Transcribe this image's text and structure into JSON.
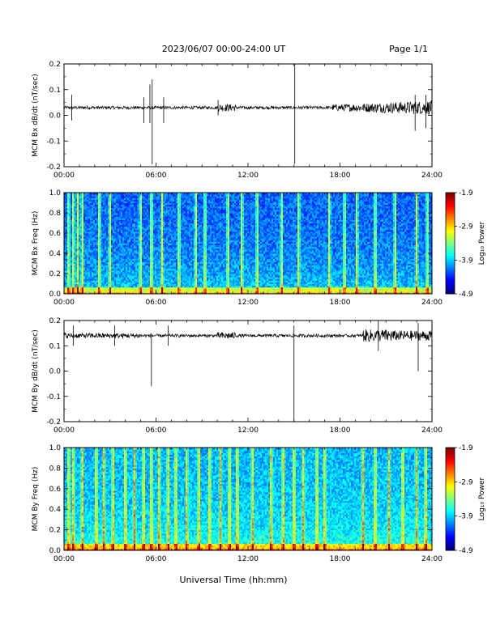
{
  "header": {
    "title": "2023/06/07  00:00-24:00 UT",
    "page": "Page 1/1"
  },
  "xlabel": "Universal Time (hh:mm)",
  "colorbar": {
    "label": "Log₁₀ Power"
  },
  "chart_data": [
    {
      "type": "line",
      "ylabel": "MCM Bx dB/dt (nT/sec)",
      "xlim": [
        0,
        24
      ],
      "ylim": [
        -0.2,
        0.2
      ],
      "x_ticks": [
        "00:00",
        "06:00",
        "12:00",
        "18:00",
        "24:00"
      ],
      "y_ticks": [
        "0.2",
        "0.1",
        "0.0",
        "-0.1",
        "-0.2"
      ],
      "baseline": 0.03,
      "spikes": [
        {
          "t": 0.5,
          "min": -0.02,
          "max": 0.08
        },
        {
          "t": 5.2,
          "min": -0.03,
          "max": 0.07
        },
        {
          "t": 5.6,
          "min": -0.03,
          "max": 0.12
        },
        {
          "t": 5.75,
          "min": -0.19,
          "max": 0.14
        },
        {
          "t": 6.5,
          "min": -0.03,
          "max": 0.07
        },
        {
          "t": 10.05,
          "min": 0.0,
          "max": 0.06
        },
        {
          "t": 15.05,
          "min": -0.19,
          "max": 0.2
        },
        {
          "t": 22.9,
          "min": -0.06,
          "max": 0.08
        },
        {
          "t": 23.6,
          "min": -0.05,
          "max": 0.08
        }
      ]
    },
    {
      "type": "heatmap",
      "ylabel": "MCM Bx Freq (Hz)",
      "xlim": [
        0,
        24
      ],
      "ylim": [
        0,
        1.0
      ],
      "x_ticks": [
        "00:00",
        "06:00",
        "12:00",
        "18:00",
        "24:00"
      ],
      "y_ticks": [
        "1.0",
        "0.8",
        "0.6",
        "0.4",
        "0.2",
        "0.0"
      ],
      "color_range": [
        -4.9,
        -1.9
      ],
      "colorbar_ticks": [
        "-1.9",
        "-2.9",
        "-3.9",
        "-4.9"
      ],
      "bright_bands": [
        0.3,
        0.6,
        0.9,
        1.2,
        2.3,
        3.0,
        5.0,
        5.7,
        6.4,
        7.5,
        8.6,
        9.2,
        10.7,
        11.6,
        12.6,
        14.2,
        15.3,
        17.3,
        18.3,
        19.1,
        20.3,
        21.6,
        23.0,
        23.7
      ]
    },
    {
      "type": "line",
      "ylabel": "MCM By dB/dt (nT/sec)",
      "xlim": [
        0,
        24
      ],
      "ylim": [
        -0.2,
        0.2
      ],
      "x_ticks": [
        "00:00",
        "06:00",
        "12:00",
        "18:00",
        "24:00"
      ],
      "y_ticks": [
        "0.2",
        "0.1",
        "0.0",
        "-0.1",
        "-0.2"
      ],
      "baseline": 0.14,
      "spikes": [
        {
          "t": 0.6,
          "min": 0.1,
          "max": 0.18
        },
        {
          "t": 3.3,
          "min": 0.1,
          "max": 0.18
        },
        {
          "t": 5.7,
          "min": -0.06,
          "max": 0.15
        },
        {
          "t": 6.8,
          "min": 0.1,
          "max": 0.18
        },
        {
          "t": 15.0,
          "min": -0.2,
          "max": 0.18
        },
        {
          "t": 20.5,
          "min": 0.08,
          "max": 0.2
        },
        {
          "t": 23.1,
          "min": 0.0,
          "max": 0.19
        }
      ]
    },
    {
      "type": "heatmap",
      "ylabel": "MCM By Freq (Hz)",
      "xlim": [
        0,
        24
      ],
      "ylim": [
        0,
        1.0
      ],
      "x_ticks": [
        "00:00",
        "06:00",
        "12:00",
        "18:00",
        "24:00"
      ],
      "y_ticks": [
        "1.0",
        "0.8",
        "0.6",
        "0.4",
        "0.2",
        "0.0"
      ],
      "color_range": [
        -4.9,
        -1.9
      ],
      "colorbar_ticks": [
        "-1.9",
        "-2.9",
        "-3.9",
        "-4.9"
      ],
      "bright_bands": [
        0.3,
        0.6,
        1.2,
        2.1,
        2.6,
        3.2,
        4.0,
        4.6,
        5.2,
        5.7,
        6.2,
        6.8,
        7.3,
        8.0,
        8.8,
        9.5,
        10.2,
        10.8,
        11.3,
        12.3,
        13.5,
        14.3,
        15.0,
        15.6,
        16.5,
        17.0,
        19.5,
        20.3,
        21.2,
        22.1,
        23.0,
        23.6
      ]
    }
  ]
}
